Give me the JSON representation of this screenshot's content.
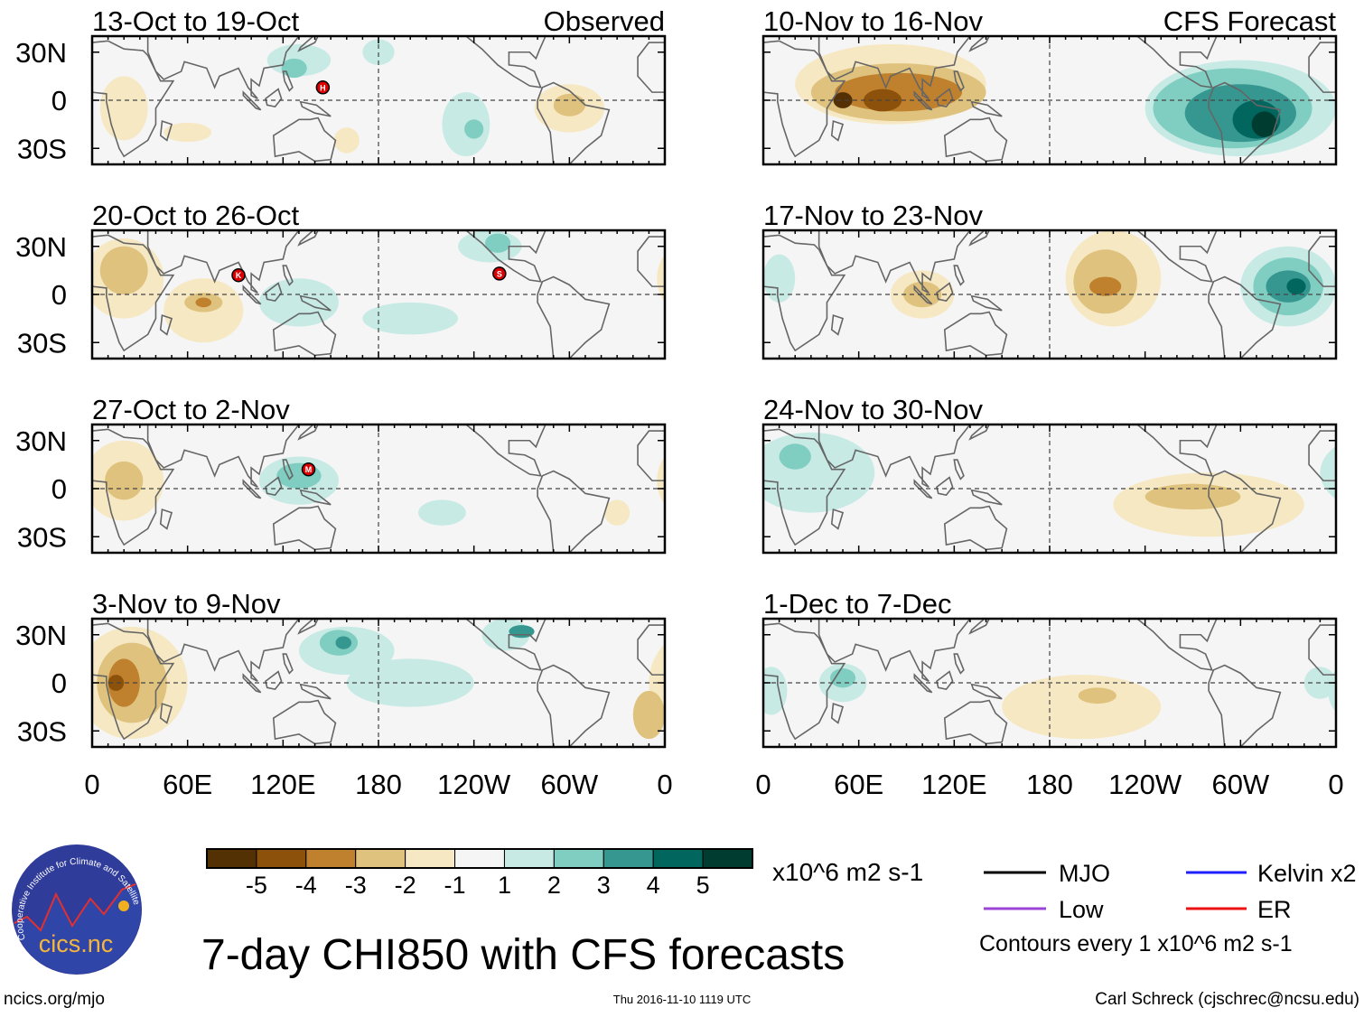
{
  "chart_data": {
    "type": "heatmap",
    "title": "7-day CHI850 with CFS forecasts",
    "variable": "CHI850",
    "units": "x10^6 m2 s-1",
    "xticks": [
      "0",
      "60E",
      "120E",
      "180",
      "120W",
      "60W",
      "0"
    ],
    "yticks": [
      "30N",
      "0",
      "30S"
    ],
    "lon_range": [
      0,
      360
    ],
    "lat_range": [
      -40,
      40
    ],
    "column_labels": {
      "left": "Observed",
      "right": "CFS Forecast"
    },
    "colorbar": {
      "labels": [
        "-5",
        "-4",
        "-3",
        "-2",
        "-1",
        "1",
        "2",
        "3",
        "4",
        "5"
      ],
      "colors": [
        "#543005",
        "#8c510a",
        "#bf812d",
        "#dfc27d",
        "#f6e8c3",
        "#f5f5f5",
        "#c7eae5",
        "#80cdc1",
        "#35978f",
        "#01665e",
        "#003c30"
      ]
    },
    "panels": [
      {
        "title": "13-Oct to 19-Oct",
        "column": "left",
        "row": 0,
        "anomalies": [
          [
            20,
            -5,
            15,
            20,
            -1
          ],
          [
            60,
            -20,
            15,
            6,
            -1
          ],
          [
            300,
            -5,
            22,
            15,
            -1
          ],
          [
            300,
            -3,
            10,
            7,
            -2
          ],
          [
            160,
            -25,
            8,
            8,
            -1
          ],
          [
            130,
            25,
            20,
            10,
            1
          ],
          [
            127,
            20,
            8,
            6,
            2
          ],
          [
            235,
            -15,
            15,
            20,
            1
          ],
          [
            240,
            -18,
            6,
            6,
            2
          ],
          [
            180,
            30,
            10,
            8,
            1
          ]
        ],
        "storms": [
          {
            "id": "H",
            "lon": 145,
            "lat": 8
          }
        ]
      },
      {
        "title": "20-Oct to 26-Oct",
        "column": "left",
        "row": 1,
        "anomalies": [
          [
            20,
            10,
            25,
            25,
            -1
          ],
          [
            20,
            15,
            15,
            15,
            -2
          ],
          [
            70,
            -10,
            25,
            20,
            -1
          ],
          [
            70,
            -5,
            12,
            6,
            -2
          ],
          [
            70,
            -5,
            5,
            3,
            -3
          ],
          [
            130,
            -5,
            25,
            15,
            1
          ],
          [
            250,
            30,
            20,
            10,
            1
          ],
          [
            255,
            32,
            8,
            6,
            2
          ],
          [
            200,
            -15,
            30,
            10,
            1
          ]
        ],
        "storms": [
          {
            "id": "K",
            "lon": 92,
            "lat": 12
          },
          {
            "id": "S",
            "lon": 256,
            "lat": 13
          }
        ]
      },
      {
        "title": "27-Oct to 2-Nov",
        "column": "left",
        "row": 2,
        "anomalies": [
          [
            20,
            5,
            25,
            25,
            -1
          ],
          [
            20,
            5,
            12,
            12,
            -2
          ],
          [
            130,
            5,
            25,
            15,
            1
          ],
          [
            130,
            8,
            14,
            8,
            2
          ],
          [
            220,
            -15,
            15,
            8,
            1
          ],
          [
            330,
            -15,
            8,
            8,
            -1
          ]
        ],
        "storms": [
          {
            "id": "M",
            "lon": 136,
            "lat": 12
          }
        ]
      },
      {
        "title": "3-Nov to 9-Nov",
        "column": "left",
        "row": 3,
        "anomalies": [
          [
            25,
            0,
            35,
            35,
            -1
          ],
          [
            25,
            0,
            22,
            25,
            -2
          ],
          [
            20,
            0,
            10,
            15,
            -3
          ],
          [
            15,
            0,
            5,
            5,
            -4
          ],
          [
            350,
            -20,
            10,
            15,
            -2
          ],
          [
            160,
            20,
            30,
            15,
            1
          ],
          [
            155,
            25,
            12,
            8,
            2
          ],
          [
            158,
            25,
            5,
            4,
            3
          ],
          [
            200,
            0,
            40,
            15,
            1
          ],
          [
            260,
            30,
            15,
            10,
            1
          ],
          [
            270,
            32,
            8,
            4,
            3
          ]
        ],
        "storms": []
      },
      {
        "title": "10-Nov to 16-Nov",
        "column": "right",
        "row": 0,
        "anomalies": [
          [
            80,
            10,
            60,
            25,
            -1
          ],
          [
            85,
            5,
            55,
            18,
            -2
          ],
          [
            85,
            5,
            40,
            12,
            -3
          ],
          [
            75,
            0,
            12,
            7,
            -4
          ],
          [
            50,
            0,
            6,
            5,
            -5
          ],
          [
            300,
            -5,
            60,
            30,
            1
          ],
          [
            295,
            -5,
            50,
            25,
            2
          ],
          [
            300,
            -8,
            35,
            18,
            3
          ],
          [
            310,
            -12,
            15,
            12,
            4
          ],
          [
            315,
            -15,
            8,
            8,
            5
          ]
        ],
        "storms": []
      },
      {
        "title": "17-Nov to 23-Nov",
        "column": "right",
        "row": 1,
        "anomalies": [
          [
            220,
            10,
            30,
            30,
            -1
          ],
          [
            215,
            8,
            20,
            20,
            -2
          ],
          [
            215,
            5,
            10,
            6,
            -3
          ],
          [
            100,
            0,
            20,
            15,
            -1
          ],
          [
            100,
            0,
            12,
            8,
            -2
          ],
          [
            330,
            5,
            30,
            25,
            1
          ],
          [
            330,
            5,
            22,
            18,
            2
          ],
          [
            330,
            5,
            14,
            10,
            3
          ],
          [
            335,
            5,
            6,
            5,
            4
          ],
          [
            10,
            10,
            10,
            15,
            1
          ]
        ],
        "storms": []
      },
      {
        "title": "24-Nov to 30-Nov",
        "column": "right",
        "row": 2,
        "anomalies": [
          [
            30,
            10,
            40,
            25,
            1
          ],
          [
            20,
            20,
            10,
            8,
            2
          ],
          [
            280,
            -10,
            60,
            20,
            -1
          ],
          [
            270,
            -5,
            30,
            8,
            -2
          ]
        ],
        "storms": []
      },
      {
        "title": "1-Dec to 7-Dec",
        "column": "right",
        "row": 3,
        "anomalies": [
          [
            50,
            0,
            15,
            12,
            1
          ],
          [
            50,
            3,
            8,
            6,
            2
          ],
          [
            5,
            -5,
            10,
            15,
            1
          ],
          [
            350,
            0,
            10,
            10,
            1
          ],
          [
            200,
            -15,
            50,
            20,
            -1
          ],
          [
            210,
            -8,
            12,
            5,
            -2
          ]
        ],
        "storms": []
      }
    ]
  },
  "legend": {
    "units_label": "x10^6 m2 s-1",
    "items": [
      {
        "label": "MJO",
        "color": "#000000"
      },
      {
        "label": "Kelvin x2",
        "color": "#1f1fff"
      },
      {
        "label": "Low",
        "color": "#9b45d6"
      },
      {
        "label": "ER",
        "color": "#ee1111"
      }
    ],
    "contours_note": "Contours every 1 x10^6 m2 s-1"
  },
  "footer": {
    "main_title": "7-day CHI850 with CFS forecasts",
    "site": "ncics.org/mjo",
    "timestamp": "Thu 2016-11-10 1119 UTC",
    "author": "Carl Schreck (cjschrec@ncsu.edu)"
  },
  "logo": {
    "text": "cics.nc",
    "ring_text": "Cooperative Institute for Climate and Satellites"
  }
}
